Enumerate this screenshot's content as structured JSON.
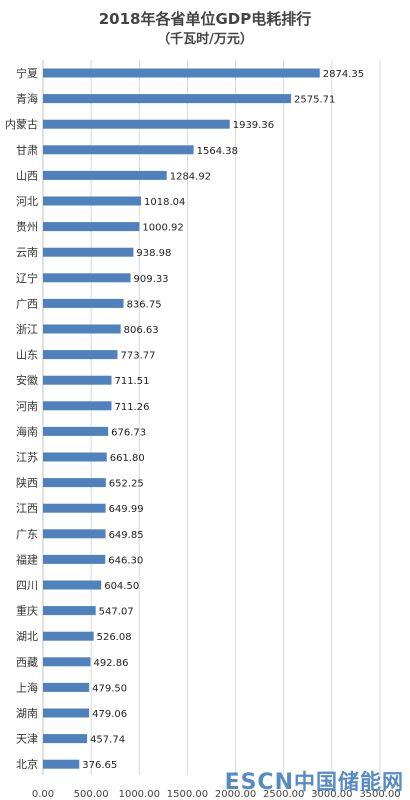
{
  "chart_data": {
    "type": "bar",
    "orientation": "horizontal",
    "title": "2018年各省单位GDP电耗排行",
    "subtitle": "（千瓦时/万元）",
    "categories": [
      "宁夏",
      "青海",
      "内蒙古",
      "甘肃",
      "山西",
      "河北",
      "贵州",
      "云南",
      "辽宁",
      "广西",
      "浙江",
      "山东",
      "安徽",
      "河南",
      "海南",
      "江苏",
      "陕西",
      "江西",
      "广东",
      "福建",
      "四川",
      "重庆",
      "湖北",
      "西藏",
      "上海",
      "湖南",
      "天津",
      "北京"
    ],
    "values": [
      2874.35,
      2575.71,
      1939.36,
      1564.38,
      1284.92,
      1018.04,
      1000.92,
      938.98,
      909.33,
      836.75,
      806.63,
      773.77,
      711.51,
      711.26,
      676.73,
      661.8,
      652.25,
      649.99,
      649.85,
      646.3,
      604.5,
      547.07,
      526.08,
      492.86,
      479.5,
      479.06,
      457.74,
      376.65
    ],
    "value_labels": [
      "2874.35",
      "2575.71",
      "1939.36",
      "1564.38",
      "1284.92",
      "1018.04",
      "1000.92",
      "938.98",
      "909.33",
      "836.75",
      "806.63",
      "773.77",
      "711.51",
      "711.26",
      "676.73",
      "661.80",
      "652.25",
      "649.99",
      "649.85",
      "646.30",
      "604.50",
      "547.07",
      "526.08",
      "492.86",
      "479.50",
      "479.06",
      "457.74",
      "376.65"
    ],
    "xlim": [
      0,
      3500
    ],
    "xticks": [
      0,
      500,
      1000,
      1500,
      2000,
      2500,
      3000,
      3500
    ],
    "xtick_labels": [
      "0.00",
      "500.00",
      "1000.00",
      "1500.00",
      "2000.00",
      "2500.00",
      "3000.00",
      "3500.00"
    ],
    "grid": true,
    "bar_color": "#4f81bd"
  },
  "watermark": {
    "latin": "ESCN",
    "chinese": "中国储能网"
  }
}
